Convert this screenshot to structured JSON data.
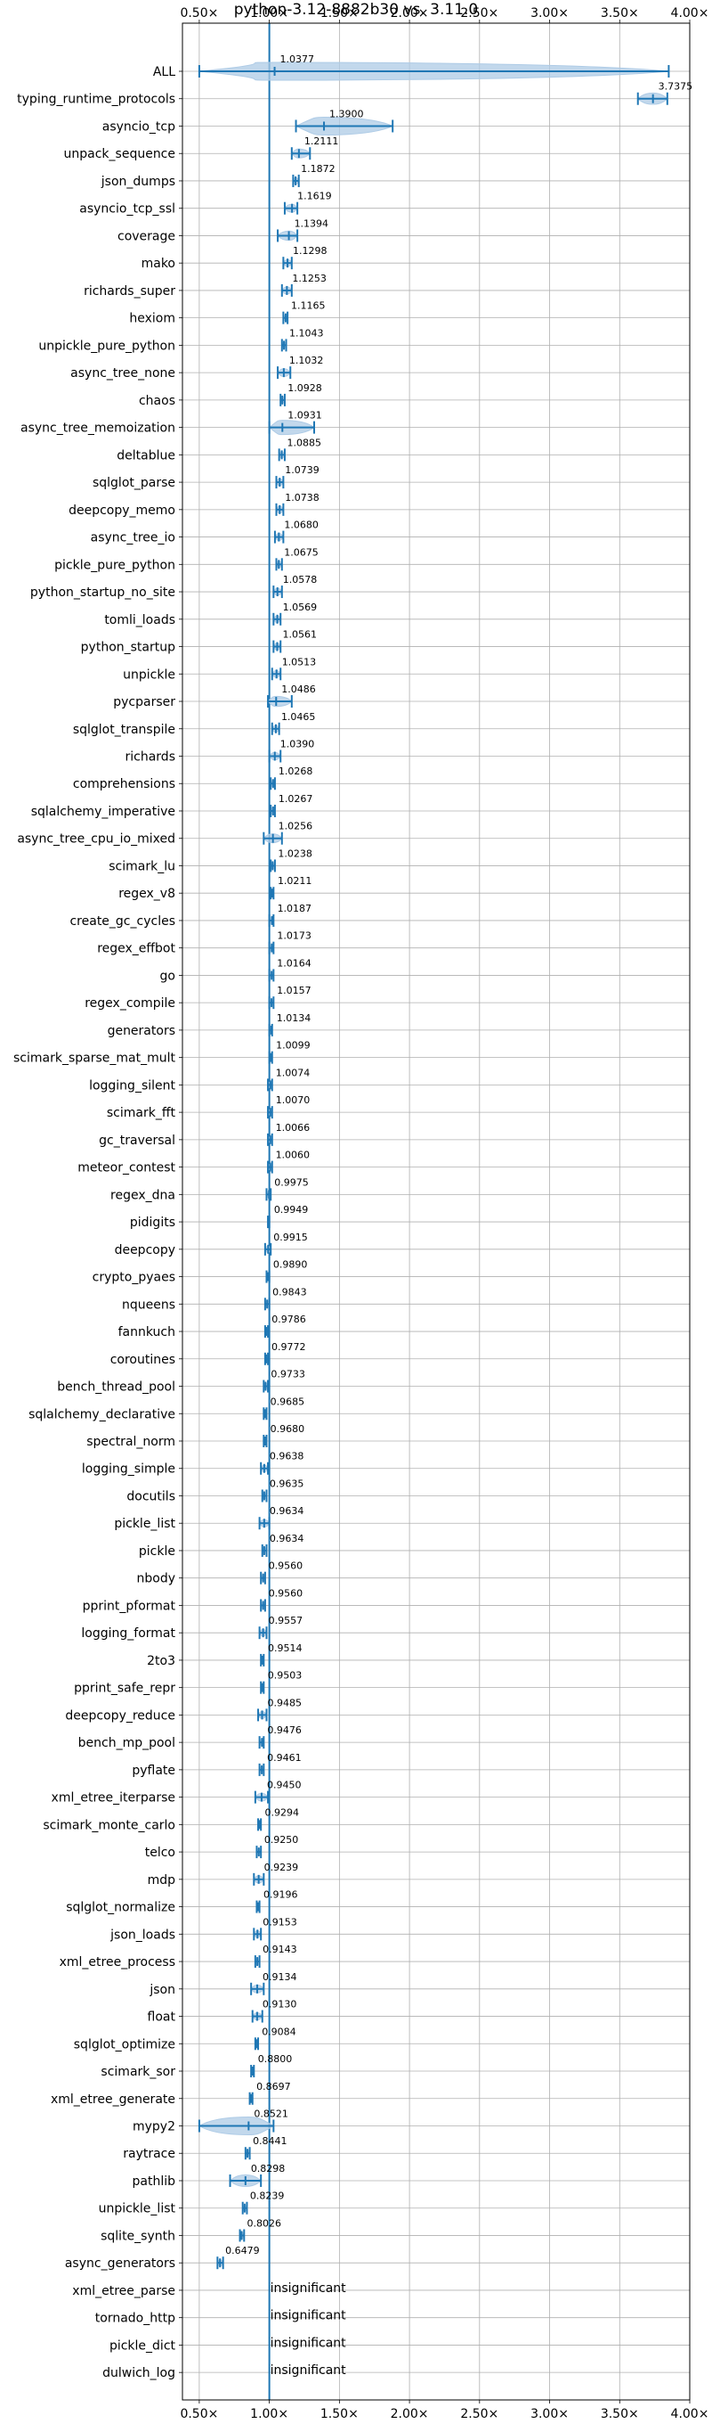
{
  "chart_data": {
    "type": "violin",
    "title": "python-3.12-8882b30 vs. 3.11.0",
    "xlim": [
      0.38,
      4.0
    ],
    "x_ticks": [
      0.5,
      1.0,
      1.5,
      2.0,
      2.5,
      3.0,
      3.5,
      4.0
    ],
    "x_tick_labels": [
      "0.50×",
      "1.00×",
      "1.50×",
      "2.00×",
      "2.50×",
      "3.00×",
      "3.50×",
      "4.00×"
    ],
    "reference_line": 1.0,
    "grid": true,
    "colors": {
      "violin": "#1f77b4",
      "violin_fill": "#aecbe6",
      "grid": "#b0b0b0"
    },
    "benchmarks": [
      {
        "name": "ALL",
        "value": 1.0377,
        "label": "1.0377",
        "min": 0.5,
        "max": 3.85
      },
      {
        "name": "typing_runtime_protocols",
        "value": 3.7375,
        "label": "3.7375",
        "min": 3.63,
        "max": 3.84
      },
      {
        "name": "asyncio_tcp",
        "value": 1.39,
        "label": "1.3900",
        "min": 1.19,
        "max": 1.88
      },
      {
        "name": "unpack_sequence",
        "value": 1.2111,
        "label": "1.2111",
        "min": 1.16,
        "max": 1.29
      },
      {
        "name": "json_dumps",
        "value": 1.1872,
        "label": "1.1872",
        "min": 1.17,
        "max": 1.21
      },
      {
        "name": "asyncio_tcp_ssl",
        "value": 1.1619,
        "label": "1.1619",
        "min": 1.11,
        "max": 1.2
      },
      {
        "name": "coverage",
        "value": 1.1394,
        "label": "1.1394",
        "min": 1.06,
        "max": 1.2
      },
      {
        "name": "mako",
        "value": 1.1298,
        "label": "1.1298",
        "min": 1.1,
        "max": 1.16
      },
      {
        "name": "richards_super",
        "value": 1.1253,
        "label": "1.1253",
        "min": 1.09,
        "max": 1.16
      },
      {
        "name": "hexiom",
        "value": 1.1165,
        "label": "1.1165",
        "min": 1.1,
        "max": 1.13
      },
      {
        "name": "unpickle_pure_python",
        "value": 1.1043,
        "label": "1.1043",
        "min": 1.09,
        "max": 1.12
      },
      {
        "name": "async_tree_none",
        "value": 1.1032,
        "label": "1.1032",
        "min": 1.06,
        "max": 1.15
      },
      {
        "name": "chaos",
        "value": 1.0928,
        "label": "1.0928",
        "min": 1.08,
        "max": 1.11
      },
      {
        "name": "async_tree_memoization",
        "value": 1.0931,
        "label": "1.0931",
        "min": 1.0,
        "max": 1.32
      },
      {
        "name": "deltablue",
        "value": 1.0885,
        "label": "1.0885",
        "min": 1.07,
        "max": 1.11
      },
      {
        "name": "sqlglot_parse",
        "value": 1.0739,
        "label": "1.0739",
        "min": 1.05,
        "max": 1.1
      },
      {
        "name": "deepcopy_memo",
        "value": 1.0738,
        "label": "1.0738",
        "min": 1.05,
        "max": 1.1
      },
      {
        "name": "async_tree_io",
        "value": 1.068,
        "label": "1.0680",
        "min": 1.04,
        "max": 1.1
      },
      {
        "name": "pickle_pure_python",
        "value": 1.0675,
        "label": "1.0675",
        "min": 1.05,
        "max": 1.09
      },
      {
        "name": "python_startup_no_site",
        "value": 1.0578,
        "label": "1.0578",
        "min": 1.03,
        "max": 1.09
      },
      {
        "name": "tomli_loads",
        "value": 1.0569,
        "label": "1.0569",
        "min": 1.03,
        "max": 1.08
      },
      {
        "name": "python_startup",
        "value": 1.0561,
        "label": "1.0561",
        "min": 1.03,
        "max": 1.08
      },
      {
        "name": "unpickle",
        "value": 1.0513,
        "label": "1.0513",
        "min": 1.02,
        "max": 1.08
      },
      {
        "name": "pycparser",
        "value": 1.0486,
        "label": "1.0486",
        "min": 0.99,
        "max": 1.16
      },
      {
        "name": "sqlglot_transpile",
        "value": 1.0465,
        "label": "1.0465",
        "min": 1.02,
        "max": 1.07
      },
      {
        "name": "richards",
        "value": 1.039,
        "label": "1.0390",
        "min": 1.0,
        "max": 1.08
      },
      {
        "name": "comprehensions",
        "value": 1.0268,
        "label": "1.0268",
        "min": 1.01,
        "max": 1.04
      },
      {
        "name": "sqlalchemy_imperative",
        "value": 1.0267,
        "label": "1.0267",
        "min": 1.01,
        "max": 1.04
      },
      {
        "name": "async_tree_cpu_io_mixed",
        "value": 1.0256,
        "label": "1.0256",
        "min": 0.96,
        "max": 1.09
      },
      {
        "name": "scimark_lu",
        "value": 1.0238,
        "label": "1.0238",
        "min": 1.01,
        "max": 1.04
      },
      {
        "name": "regex_v8",
        "value": 1.0211,
        "label": "1.0211",
        "min": 1.01,
        "max": 1.03
      },
      {
        "name": "create_gc_cycles",
        "value": 1.0187,
        "label": "1.0187",
        "min": 1.0,
        "max": 1.03
      },
      {
        "name": "regex_effbot",
        "value": 1.0173,
        "label": "1.0173",
        "min": 1.0,
        "max": 1.03
      },
      {
        "name": "go",
        "value": 1.0164,
        "label": "1.0164",
        "min": 1.0,
        "max": 1.03
      },
      {
        "name": "regex_compile",
        "value": 1.0157,
        "label": "1.0157",
        "min": 1.0,
        "max": 1.03
      },
      {
        "name": "generators",
        "value": 1.0134,
        "label": "1.0134",
        "min": 1.0,
        "max": 1.02
      },
      {
        "name": "scimark_sparse_mat_mult",
        "value": 1.0099,
        "label": "1.0099",
        "min": 1.0,
        "max": 1.02
      },
      {
        "name": "logging_silent",
        "value": 1.0074,
        "label": "1.0074",
        "min": 0.99,
        "max": 1.02
      },
      {
        "name": "scimark_fft",
        "value": 1.007,
        "label": "1.0070",
        "min": 0.99,
        "max": 1.02
      },
      {
        "name": "gc_traversal",
        "value": 1.0066,
        "label": "1.0066",
        "min": 0.99,
        "max": 1.02
      },
      {
        "name": "meteor_contest",
        "value": 1.006,
        "label": "1.0060",
        "min": 0.99,
        "max": 1.02
      },
      {
        "name": "regex_dna",
        "value": 0.9975,
        "label": "0.9975",
        "min": 0.98,
        "max": 1.01
      },
      {
        "name": "pidigits",
        "value": 0.9949,
        "label": "0.9949",
        "min": 0.99,
        "max": 1.0
      },
      {
        "name": "deepcopy",
        "value": 0.9915,
        "label": "0.9915",
        "min": 0.97,
        "max": 1.01
      },
      {
        "name": "crypto_pyaes",
        "value": 0.989,
        "label": "0.9890",
        "min": 0.98,
        "max": 1.0
      },
      {
        "name": "nqueens",
        "value": 0.9843,
        "label": "0.9843",
        "min": 0.97,
        "max": 1.0
      },
      {
        "name": "fannkuch",
        "value": 0.9786,
        "label": "0.9786",
        "min": 0.97,
        "max": 0.99
      },
      {
        "name": "coroutines",
        "value": 0.9772,
        "label": "0.9772",
        "min": 0.97,
        "max": 0.99
      },
      {
        "name": "bench_thread_pool",
        "value": 0.9733,
        "label": "0.9733",
        "min": 0.96,
        "max": 0.99
      },
      {
        "name": "sqlalchemy_declarative",
        "value": 0.9685,
        "label": "0.9685",
        "min": 0.96,
        "max": 0.98
      },
      {
        "name": "spectral_norm",
        "value": 0.968,
        "label": "0.9680",
        "min": 0.96,
        "max": 0.98
      },
      {
        "name": "logging_simple",
        "value": 0.9638,
        "label": "0.9638",
        "min": 0.94,
        "max": 0.99
      },
      {
        "name": "docutils",
        "value": 0.9635,
        "label": "0.9635",
        "min": 0.95,
        "max": 0.98
      },
      {
        "name": "pickle_list",
        "value": 0.9634,
        "label": "0.9634",
        "min": 0.93,
        "max": 1.0
      },
      {
        "name": "pickle",
        "value": 0.9634,
        "label": "0.9634",
        "min": 0.95,
        "max": 0.98
      },
      {
        "name": "nbody",
        "value": 0.956,
        "label": "0.9560",
        "min": 0.94,
        "max": 0.97
      },
      {
        "name": "pprint_pformat",
        "value": 0.956,
        "label": "0.9560",
        "min": 0.94,
        "max": 0.97
      },
      {
        "name": "logging_format",
        "value": 0.9557,
        "label": "0.9557",
        "min": 0.93,
        "max": 0.98
      },
      {
        "name": "2to3",
        "value": 0.9514,
        "label": "0.9514",
        "min": 0.94,
        "max": 0.96
      },
      {
        "name": "pprint_safe_repr",
        "value": 0.9503,
        "label": "0.9503",
        "min": 0.94,
        "max": 0.96
      },
      {
        "name": "deepcopy_reduce",
        "value": 0.9485,
        "label": "0.9485",
        "min": 0.92,
        "max": 0.98
      },
      {
        "name": "bench_mp_pool",
        "value": 0.9476,
        "label": "0.9476",
        "min": 0.93,
        "max": 0.96
      },
      {
        "name": "pyflate",
        "value": 0.9461,
        "label": "0.9461",
        "min": 0.93,
        "max": 0.96
      },
      {
        "name": "xml_etree_iterparse",
        "value": 0.945,
        "label": "0.9450",
        "min": 0.9,
        "max": 0.99
      },
      {
        "name": "scimark_monte_carlo",
        "value": 0.9294,
        "label": "0.9294",
        "min": 0.92,
        "max": 0.94
      },
      {
        "name": "telco",
        "value": 0.925,
        "label": "0.9250",
        "min": 0.91,
        "max": 0.94
      },
      {
        "name": "mdp",
        "value": 0.9239,
        "label": "0.9239",
        "min": 0.89,
        "max": 0.96
      },
      {
        "name": "sqlglot_normalize",
        "value": 0.9196,
        "label": "0.9196",
        "min": 0.91,
        "max": 0.93
      },
      {
        "name": "json_loads",
        "value": 0.9153,
        "label": "0.9153",
        "min": 0.89,
        "max": 0.94
      },
      {
        "name": "xml_etree_process",
        "value": 0.9143,
        "label": "0.9143",
        "min": 0.9,
        "max": 0.93
      },
      {
        "name": "json",
        "value": 0.9134,
        "label": "0.9134",
        "min": 0.87,
        "max": 0.96
      },
      {
        "name": "float",
        "value": 0.913,
        "label": "0.9130",
        "min": 0.88,
        "max": 0.95
      },
      {
        "name": "sqlglot_optimize",
        "value": 0.9084,
        "label": "0.9084",
        "min": 0.9,
        "max": 0.92
      },
      {
        "name": "scimark_sor",
        "value": 0.88,
        "label": "0.8800",
        "min": 0.87,
        "max": 0.89
      },
      {
        "name": "xml_etree_generate",
        "value": 0.8697,
        "label": "0.8697",
        "min": 0.86,
        "max": 0.88
      },
      {
        "name": "mypy2",
        "value": 0.8521,
        "label": "0.8521",
        "min": 0.5,
        "max": 1.03
      },
      {
        "name": "raytrace",
        "value": 0.8441,
        "label": "0.8441",
        "min": 0.83,
        "max": 0.86
      },
      {
        "name": "pathlib",
        "value": 0.8298,
        "label": "0.8298",
        "min": 0.72,
        "max": 0.94
      },
      {
        "name": "unpickle_list",
        "value": 0.8239,
        "label": "0.8239",
        "min": 0.81,
        "max": 0.84
      },
      {
        "name": "sqlite_synth",
        "value": 0.8026,
        "label": "0.8026",
        "min": 0.79,
        "max": 0.82
      },
      {
        "name": "async_generators",
        "value": 0.6479,
        "label": "0.6479",
        "min": 0.63,
        "max": 0.67
      },
      {
        "name": "xml_etree_parse",
        "value": null,
        "label": "insignificant"
      },
      {
        "name": "tornado_http",
        "value": null,
        "label": "insignificant"
      },
      {
        "name": "pickle_dict",
        "value": null,
        "label": "insignificant"
      },
      {
        "name": "dulwich_log",
        "value": null,
        "label": "insignificant"
      }
    ]
  }
}
